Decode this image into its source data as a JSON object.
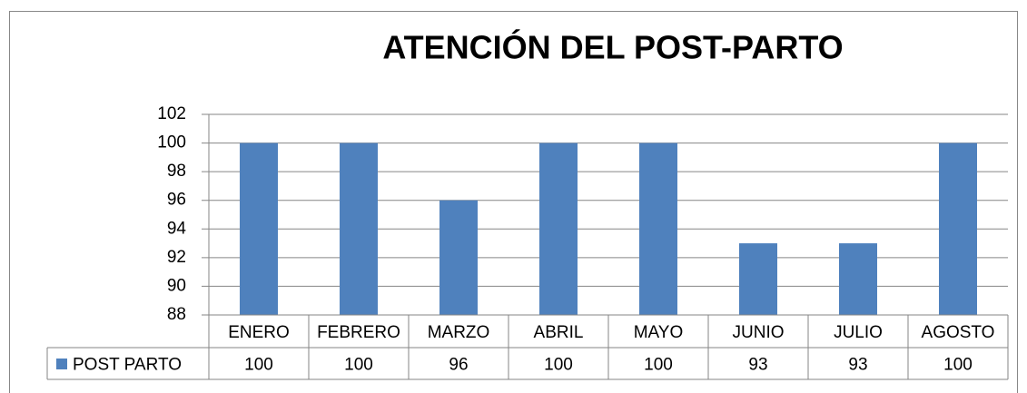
{
  "chart_data": {
    "type": "bar",
    "title": "ATENCIÓN DEL POST-PARTO",
    "categories": [
      "ENERO",
      "FEBRERO",
      "MARZO",
      "ABRIL",
      "MAYO",
      "JUNIO",
      "JULIO",
      "AGOSTO"
    ],
    "series": [
      {
        "name": "POST PARTO",
        "color": "#4f81bd",
        "values": [
          100,
          100,
          96,
          100,
          100,
          93,
          93,
          100
        ]
      }
    ],
    "ylim": [
      88,
      102
    ],
    "yticks": [
      88,
      90,
      92,
      94,
      96,
      98,
      100,
      102
    ],
    "grid": true
  }
}
